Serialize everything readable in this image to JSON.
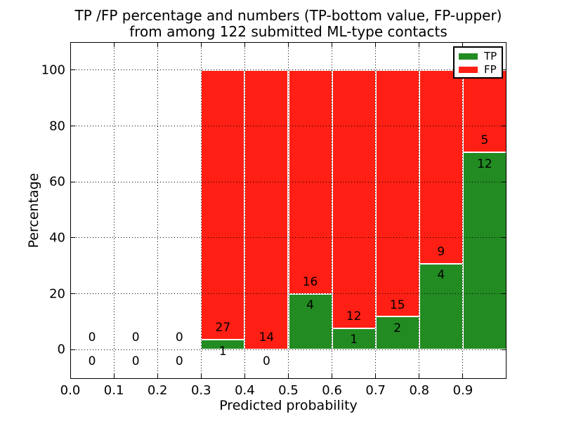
{
  "figure": {
    "title_line1": "TP /FP percentage and numbers (TP-bottom value, FP-upper)",
    "title_line2": "from among 122 submitted ML-type contacts"
  },
  "chart_data": {
    "type": "bar",
    "stacked": true,
    "title": "TP /FP percentage and numbers (TP-bottom value, FP-upper)\nfrom among 122 submitted ML-type contacts",
    "xlabel": "Predicted probability",
    "ylabel": "Percentage",
    "xlim": [
      0.0,
      1.0
    ],
    "ylim": [
      -10.5,
      110
    ],
    "grid": {
      "on": true,
      "style": "dotted"
    },
    "xticks": [
      {
        "value": 0.0,
        "label": "0.0"
      },
      {
        "value": 0.1,
        "label": "0.1"
      },
      {
        "value": 0.2,
        "label": "0.2"
      },
      {
        "value": 0.3,
        "label": "0.3"
      },
      {
        "value": 0.4,
        "label": "0.4"
      },
      {
        "value": 0.5,
        "label": "0.5"
      },
      {
        "value": 0.6,
        "label": "0.6"
      },
      {
        "value": 0.7,
        "label": "0.7"
      },
      {
        "value": 0.8,
        "label": "0.8"
      },
      {
        "value": 0.9,
        "label": "0.9"
      }
    ],
    "yticks": [
      {
        "value": 0,
        "label": "0"
      },
      {
        "value": 20,
        "label": "20"
      },
      {
        "value": 40,
        "label": "40"
      },
      {
        "value": 60,
        "label": "60"
      },
      {
        "value": 80,
        "label": "80"
      },
      {
        "value": 100,
        "label": "100"
      }
    ],
    "legend": {
      "position": "upper-right",
      "entries": [
        {
          "label": "TP",
          "color": "#228b22"
        },
        {
          "label": "FP",
          "color": "#ff1f14"
        }
      ]
    },
    "total_submitted": 122,
    "bins": [
      {
        "x_start": 0.0,
        "x_end": 0.1,
        "tp_count": 0,
        "fp_count": 0,
        "tp_pct": 0,
        "has_bar": false
      },
      {
        "x_start": 0.1,
        "x_end": 0.2,
        "tp_count": 0,
        "fp_count": 0,
        "tp_pct": 0,
        "has_bar": false
      },
      {
        "x_start": 0.2,
        "x_end": 0.3,
        "tp_count": 0,
        "fp_count": 0,
        "tp_pct": 0,
        "has_bar": false
      },
      {
        "x_start": 0.3,
        "x_end": 0.4,
        "tp_count": 1,
        "fp_count": 27,
        "tp_pct": 3.571,
        "has_bar": true
      },
      {
        "x_start": 0.4,
        "x_end": 0.5,
        "tp_count": 0,
        "fp_count": 14,
        "tp_pct": 0,
        "has_bar": true
      },
      {
        "x_start": 0.5,
        "x_end": 0.6,
        "tp_count": 4,
        "fp_count": 16,
        "tp_pct": 20,
        "has_bar": true
      },
      {
        "x_start": 0.6,
        "x_end": 0.7,
        "tp_count": 1,
        "fp_count": 12,
        "tp_pct": 7.692,
        "has_bar": true
      },
      {
        "x_start": 0.7,
        "x_end": 0.8,
        "tp_count": 2,
        "fp_count": 15,
        "tp_pct": 11.765,
        "has_bar": true
      },
      {
        "x_start": 0.8,
        "x_end": 0.9,
        "tp_count": 4,
        "fp_count": 9,
        "tp_pct": 30.769,
        "has_bar": true
      },
      {
        "x_start": 0.9,
        "x_end": 1.0,
        "tp_count": 12,
        "fp_count": 5,
        "tp_pct": 70.588,
        "has_bar": true
      }
    ]
  },
  "colors": {
    "tp_green": "#228b22",
    "fp_red": "#ff1f14",
    "bar_edge": "#ffffff",
    "grid": "#000000",
    "text": "#000000",
    "background": "#ffffff"
  }
}
